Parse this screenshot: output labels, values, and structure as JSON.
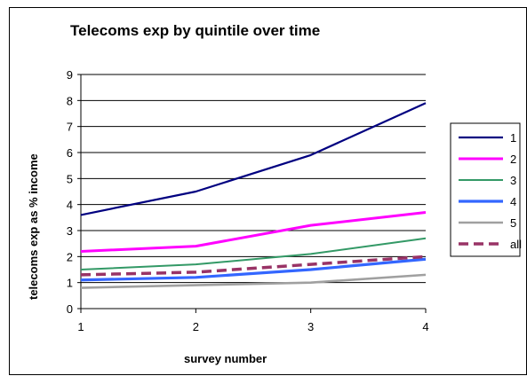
{
  "chart_data": {
    "type": "line",
    "title": "Telecoms exp by quintile over time",
    "xlabel": "survey number",
    "ylabel": "telecoms exp as % income",
    "x": [
      1,
      2,
      3,
      4
    ],
    "ylim": [
      0,
      9
    ],
    "yticks": [
      0,
      1,
      2,
      3,
      4,
      5,
      6,
      7,
      8,
      9
    ],
    "xticks": [
      1,
      2,
      3,
      4
    ],
    "grid": true,
    "legend_position": "right",
    "series": [
      {
        "name": "1",
        "values": [
          3.6,
          4.5,
          5.9,
          7.9
        ],
        "color": "#000080",
        "style": "solid"
      },
      {
        "name": "2",
        "values": [
          2.2,
          2.4,
          3.2,
          3.7
        ],
        "color": "#ff00ff",
        "style": "solid"
      },
      {
        "name": "3",
        "values": [
          1.5,
          1.7,
          2.1,
          2.7
        ],
        "color": "#339966",
        "style": "solid"
      },
      {
        "name": "4",
        "values": [
          1.1,
          1.2,
          1.5,
          1.9
        ],
        "color": "#3366ff",
        "style": "solid"
      },
      {
        "name": "5",
        "values": [
          0.8,
          0.9,
          1.0,
          1.3
        ],
        "color": "#a0a0a0",
        "style": "solid"
      },
      {
        "name": "all",
        "values": [
          1.3,
          1.4,
          1.7,
          2.0
        ],
        "color": "#993366",
        "style": "dashed"
      }
    ]
  }
}
